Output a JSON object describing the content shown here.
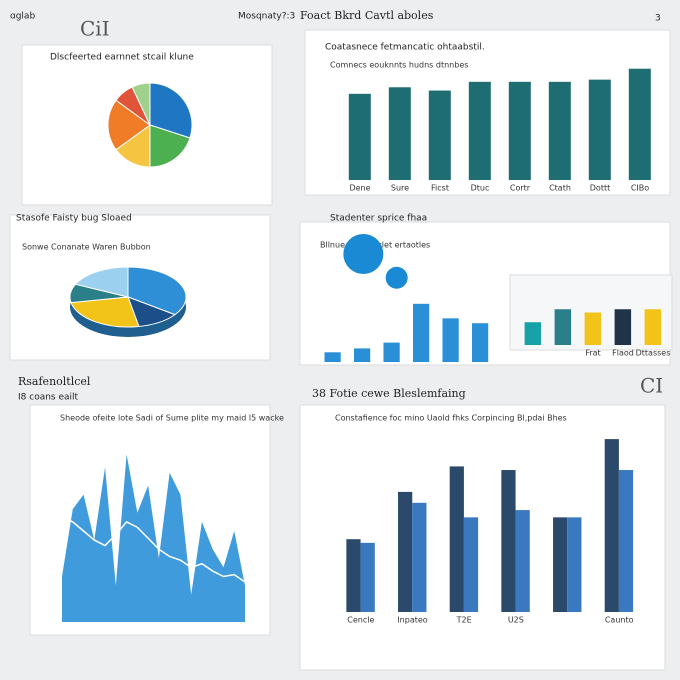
{
  "page": {
    "top_left": "ɑglab",
    "top_logo": "CiI",
    "top_center": "Mosqnaty?:3",
    "top_right_title": "Foact Bkrd Cavtl aboles",
    "top_right_mark": "3",
    "bottom_left_title": "Rsafenoltlcel",
    "bottom_left_subtitle": "I8 coans eailt",
    "bottom_right_title": "38 Fotie cewe Bleslemfaing",
    "bottom_right_corner": "CI"
  },
  "chart_data": [
    {
      "type": "pie",
      "title": "Dlscfeerted earnnet stcail klune",
      "values": [
        30,
        20,
        15,
        20,
        8,
        7
      ],
      "colors": [
        "#1f77c4",
        "#4caf50",
        "#f5c542",
        "#f07c28",
        "#e0553a",
        "#9fd18a"
      ]
    },
    {
      "type": "bar",
      "title": "Coatasnece fetmancatic ohtaabstil.",
      "subtitle": "Comnecs eouknnts hudns dtnnbes",
      "categories": [
        "Dene",
        "Sure",
        "Ficst",
        "Dtuc",
        "Cortr",
        "Ctath",
        "Dottt",
        "CIBo"
      ],
      "values": [
        79,
        85,
        82,
        90,
        90,
        90,
        92,
        102
      ],
      "color": "#1e6d73",
      "ylim": [
        0,
        110
      ]
    },
    {
      "type": "pie",
      "title": "Stasofe Faisty bug Sloaed",
      "subtitle": "Sonwe Conanate Waren Bubbon",
      "values": [
        35,
        12,
        25,
        10,
        18
      ],
      "colors": [
        "#2e8fd6",
        "#1c4f8a",
        "#f2c318",
        "#2a7f89",
        "#9bd0ee"
      ]
    },
    {
      "type": "bar",
      "title": "Stadenter sprice fhaa",
      "subtitle": "Bllnue Chnsnaclet ertaotles",
      "values": [
        10,
        14,
        20,
        60,
        45,
        40
      ],
      "color": "#2b8fd8",
      "ylim": [
        0,
        100
      ]
    },
    {
      "type": "scatter",
      "x": [
        1,
        2
      ],
      "values": [
        80,
        55
      ],
      "sizes": [
        20,
        11
      ],
      "color": "#1a8ad4",
      "xlim": [
        0,
        3
      ],
      "ylim": [
        0,
        100
      ]
    },
    {
      "type": "bar",
      "categories": [
        null,
        null,
        "Frat",
        "Flaod",
        "Dttasses"
      ],
      "values": [
        35,
        55,
        50,
        55,
        55
      ],
      "colors": [
        "#17a2a8",
        "#2a7f89",
        "#f2c318",
        "#213347",
        "#f2c318"
      ],
      "ylim": [
        0,
        100
      ]
    },
    {
      "type": "area",
      "title": "Sheode ofeite lote Sadi of Sume plite my maid l5 wacke",
      "values": [
        25,
        62,
        70,
        45,
        85,
        20,
        92,
        60,
        75,
        35,
        82,
        70,
        15,
        55,
        40,
        30,
        50,
        20
      ],
      "trend": [
        58,
        55,
        50,
        45,
        42,
        48,
        55,
        52,
        46,
        40,
        36,
        34,
        30,
        32,
        28,
        25,
        26,
        22
      ],
      "color": "#1f8ad6",
      "ylim": [
        0,
        100
      ]
    },
    {
      "type": "bar",
      "subtitle": "Constafience foc mino Uaold fhks Corpincing Bl,pdai Bhes",
      "categories": [
        "Cencle",
        "Inpateo",
        "T2E",
        "U2S",
        null,
        "Caunto"
      ],
      "series": [
        {
          "color": "#2b4a6b",
          "values": [
            40,
            66,
            80,
            78,
            52,
            95
          ]
        },
        {
          "color": "#3a78c0",
          "values": [
            38,
            60,
            52,
            56,
            52,
            78
          ]
        }
      ],
      "ylim": [
        0,
        100
      ]
    }
  ]
}
